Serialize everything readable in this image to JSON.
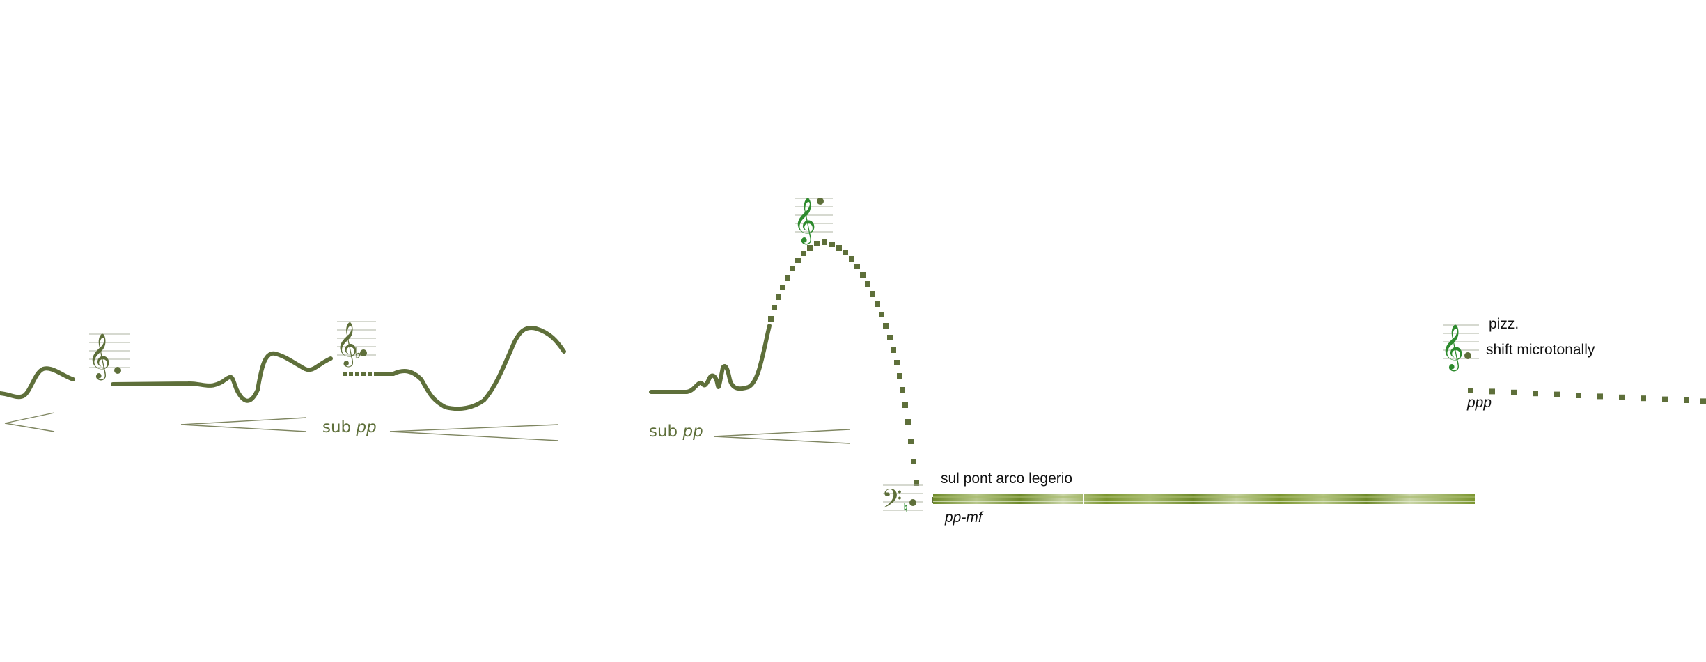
{
  "colors": {
    "olive": "#5E6F3A",
    "olive_light": "#8A9A55",
    "hairpin": "#7E8560",
    "clef_green": "#2E8B2E",
    "staff": "#AEB3A0",
    "text_dark": "#111111"
  },
  "icons": {
    "treble_clef": "𝄞",
    "bass_clef": "𝄢",
    "flat": "♭",
    "natural": "♮"
  },
  "markings": {
    "dyn_sub_pp_1": {
      "prefix": "sub ",
      "dyn": "pp"
    },
    "dyn_sub_pp_2": {
      "prefix": "sub ",
      "dyn": "pp"
    },
    "technique_sul_pont": "sul pont arco legerio",
    "dyn_pp_mf": "pp-mf",
    "technique_pizz": "pizz.",
    "technique_shift": "shift microtonally",
    "dyn_ppp": "ppp"
  }
}
